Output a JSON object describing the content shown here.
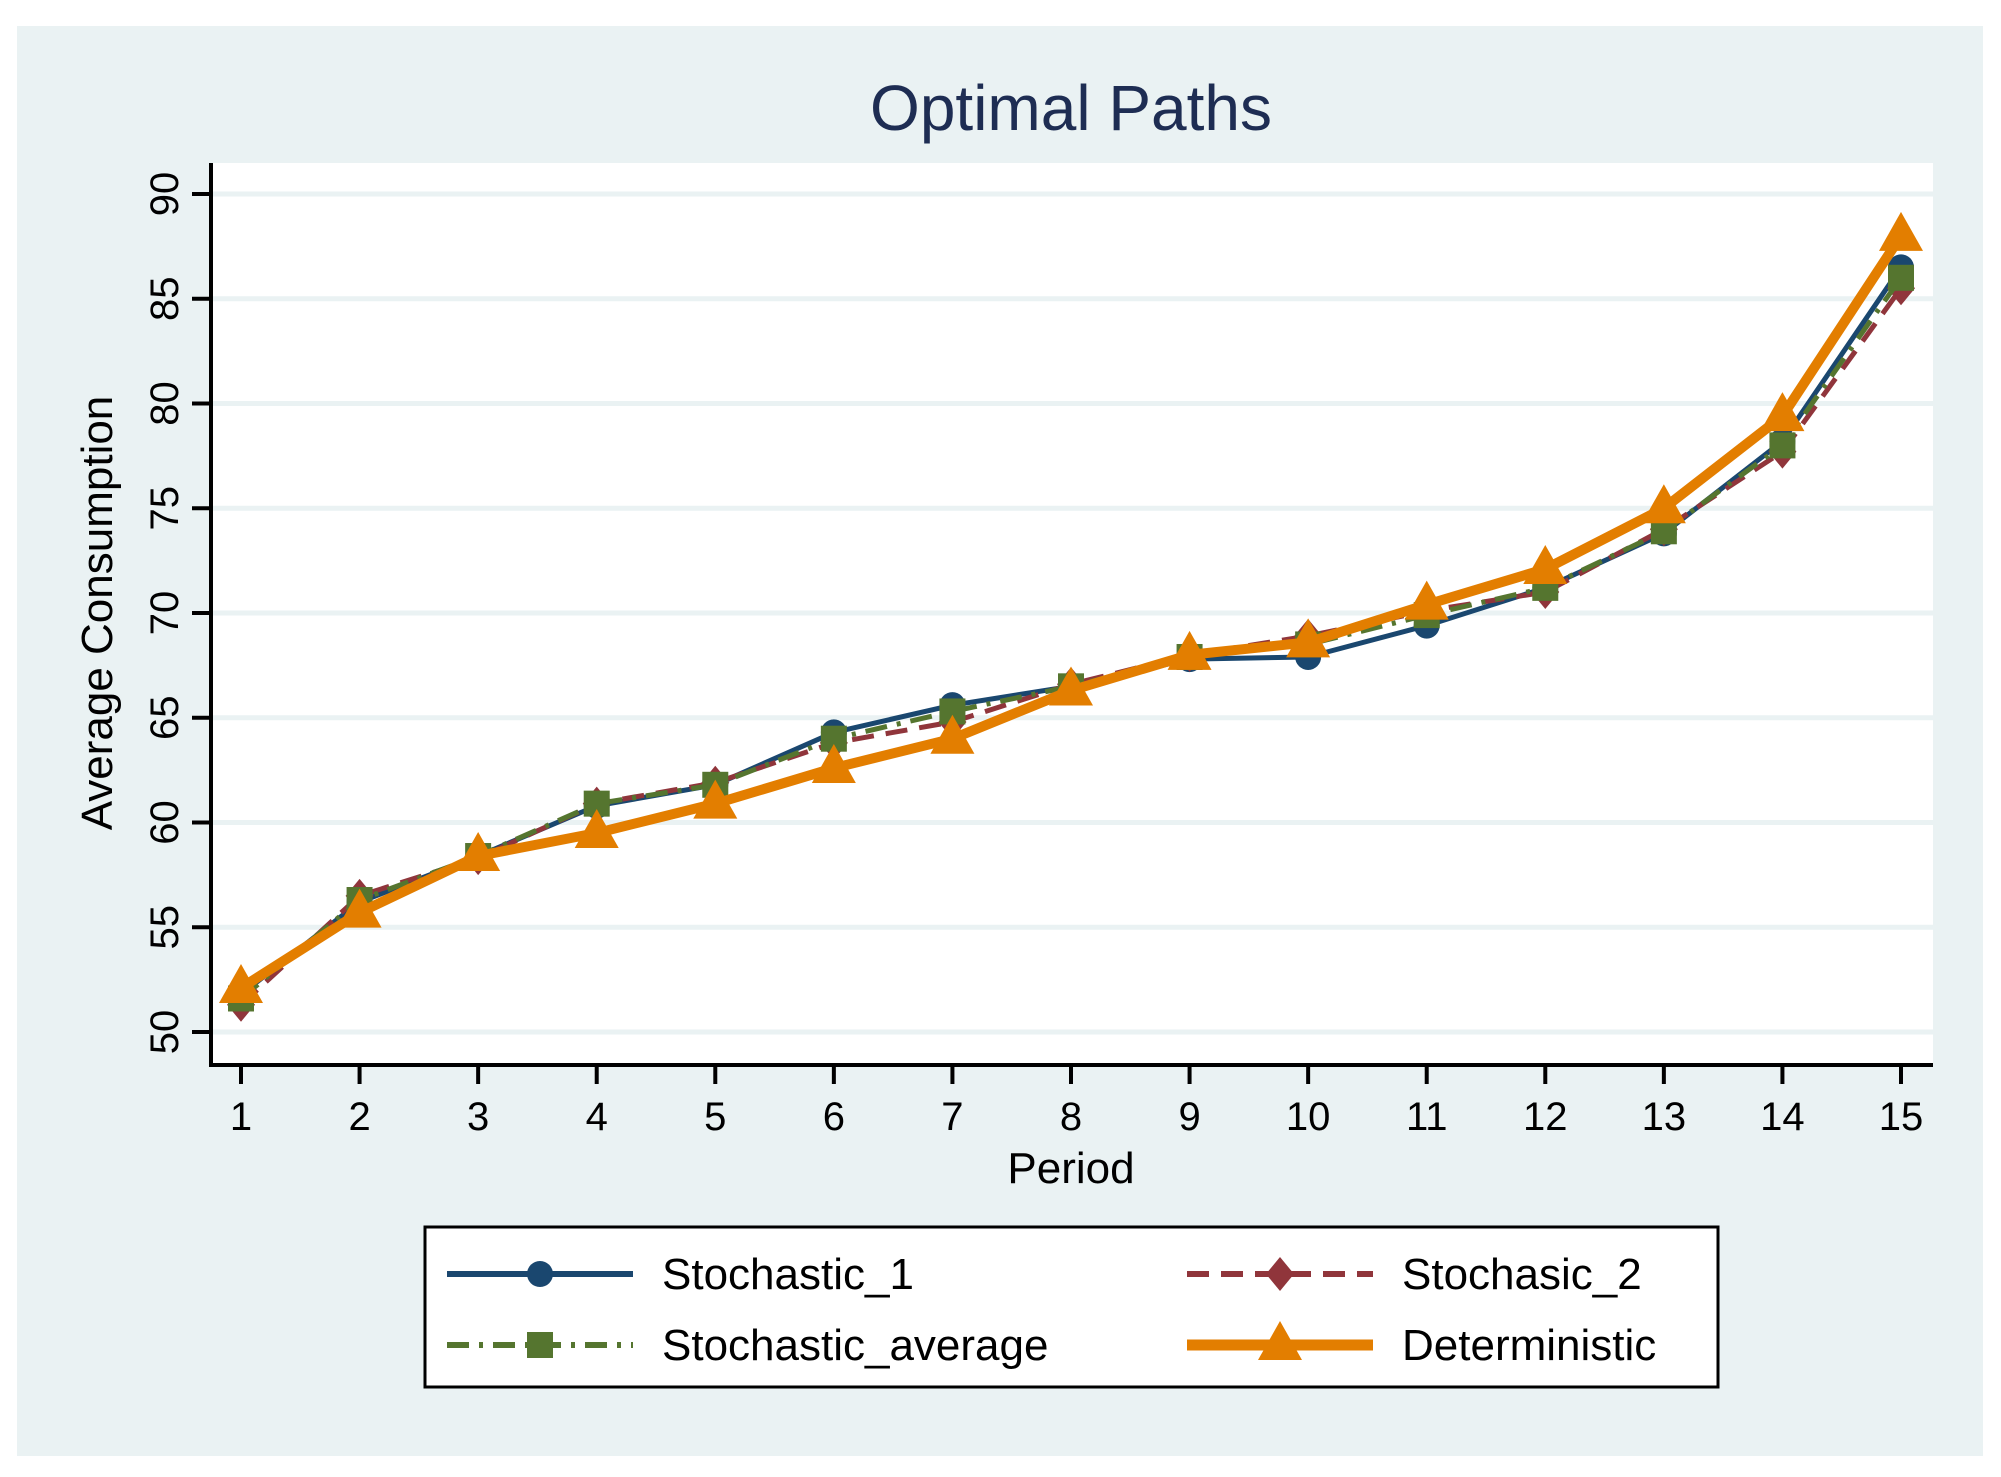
{
  "chart_data": {
    "type": "line",
    "title": "Optimal Paths",
    "xlabel": "Period",
    "ylabel": "Average Consumption",
    "x": [
      1,
      2,
      3,
      4,
      5,
      6,
      7,
      8,
      9,
      10,
      11,
      12,
      13,
      14,
      15
    ],
    "xticks": [
      "1",
      "2",
      "3",
      "4",
      "5",
      "6",
      "7",
      "8",
      "9",
      "10",
      "11",
      "12",
      "13",
      "14",
      "15"
    ],
    "yticks": [
      "50",
      "55",
      "60",
      "65",
      "70",
      "75",
      "80",
      "85",
      "90"
    ],
    "xlim": [
      0.75,
      15.25
    ],
    "ylim": [
      48.5,
      91.5
    ],
    "grid": "horizontal",
    "legend_position": "bottom",
    "background_color": "#eaf2f3",
    "series": [
      {
        "name": "Stochastic_1",
        "color": "#1a476f",
        "marker": "circle",
        "dash": "solid",
        "values": [
          51.8,
          56.2,
          58.4,
          60.8,
          61.8,
          64.3,
          65.6,
          66.5,
          67.8,
          67.9,
          69.4,
          71.2,
          73.8,
          78.2,
          86.5
        ]
      },
      {
        "name": "Stochasic_2",
        "color": "#90353b",
        "marker": "diamond",
        "dash": "dash",
        "values": [
          51.3,
          56.5,
          58.3,
          60.9,
          61.9,
          63.8,
          64.8,
          66.6,
          68.0,
          68.9,
          70.1,
          71.0,
          74.0,
          77.7,
          85.5
        ]
      },
      {
        "name": "Stochastic_average",
        "color": "#55752f",
        "marker": "square",
        "dash": "dashdot",
        "values": [
          51.6,
          56.3,
          58.4,
          60.9,
          61.8,
          64.0,
          65.3,
          66.5,
          67.9,
          68.5,
          69.9,
          71.2,
          73.9,
          78.0,
          86.0
        ]
      },
      {
        "name": "Deterministic",
        "color": "#e37e00",
        "marker": "triangle",
        "dash": "solid",
        "values": [
          52.1,
          55.7,
          58.4,
          59.5,
          60.9,
          62.6,
          64.0,
          66.3,
          68.0,
          68.6,
          70.4,
          72.1,
          75.0,
          79.4,
          88.0
        ]
      }
    ]
  }
}
